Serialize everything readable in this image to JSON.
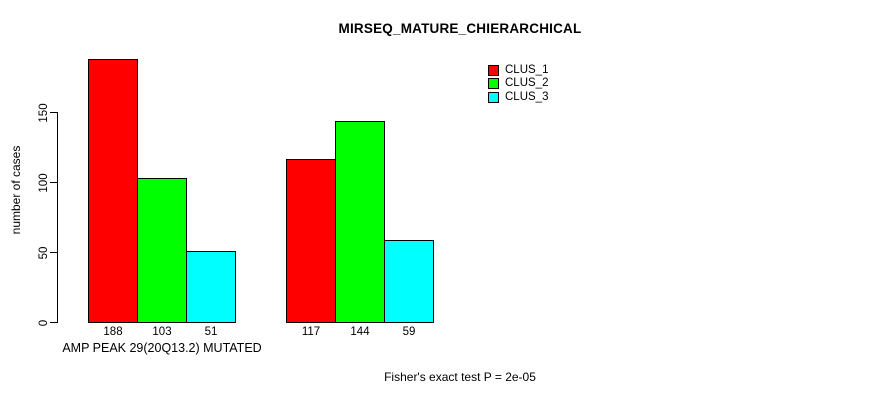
{
  "chart_data": {
    "type": "bar",
    "title": "MIRSEQ_MATURE_CHIERARCHICAL",
    "ylabel": "number of cases",
    "xlabel": "AMP PEAK 29(20Q13.2) MUTATED",
    "yticks": [
      0,
      50,
      100,
      150
    ],
    "ylim": [
      0,
      190
    ],
    "grid": false,
    "legend_position": "top-right",
    "series": [
      {
        "name": "CLUS_1",
        "color": "#ff0000"
      },
      {
        "name": "CLUS_2",
        "color": "#00ff00"
      },
      {
        "name": "CLUS_3",
        "color": "#00ffff"
      }
    ],
    "groups": [
      {
        "label": "AMP PEAK 29(20Q13.2) MUTATED",
        "values": [
          188,
          103,
          51
        ]
      },
      {
        "label": "",
        "values": [
          117,
          144,
          59
        ]
      }
    ],
    "footnote": "Fisher's exact test P = 2e-05"
  }
}
